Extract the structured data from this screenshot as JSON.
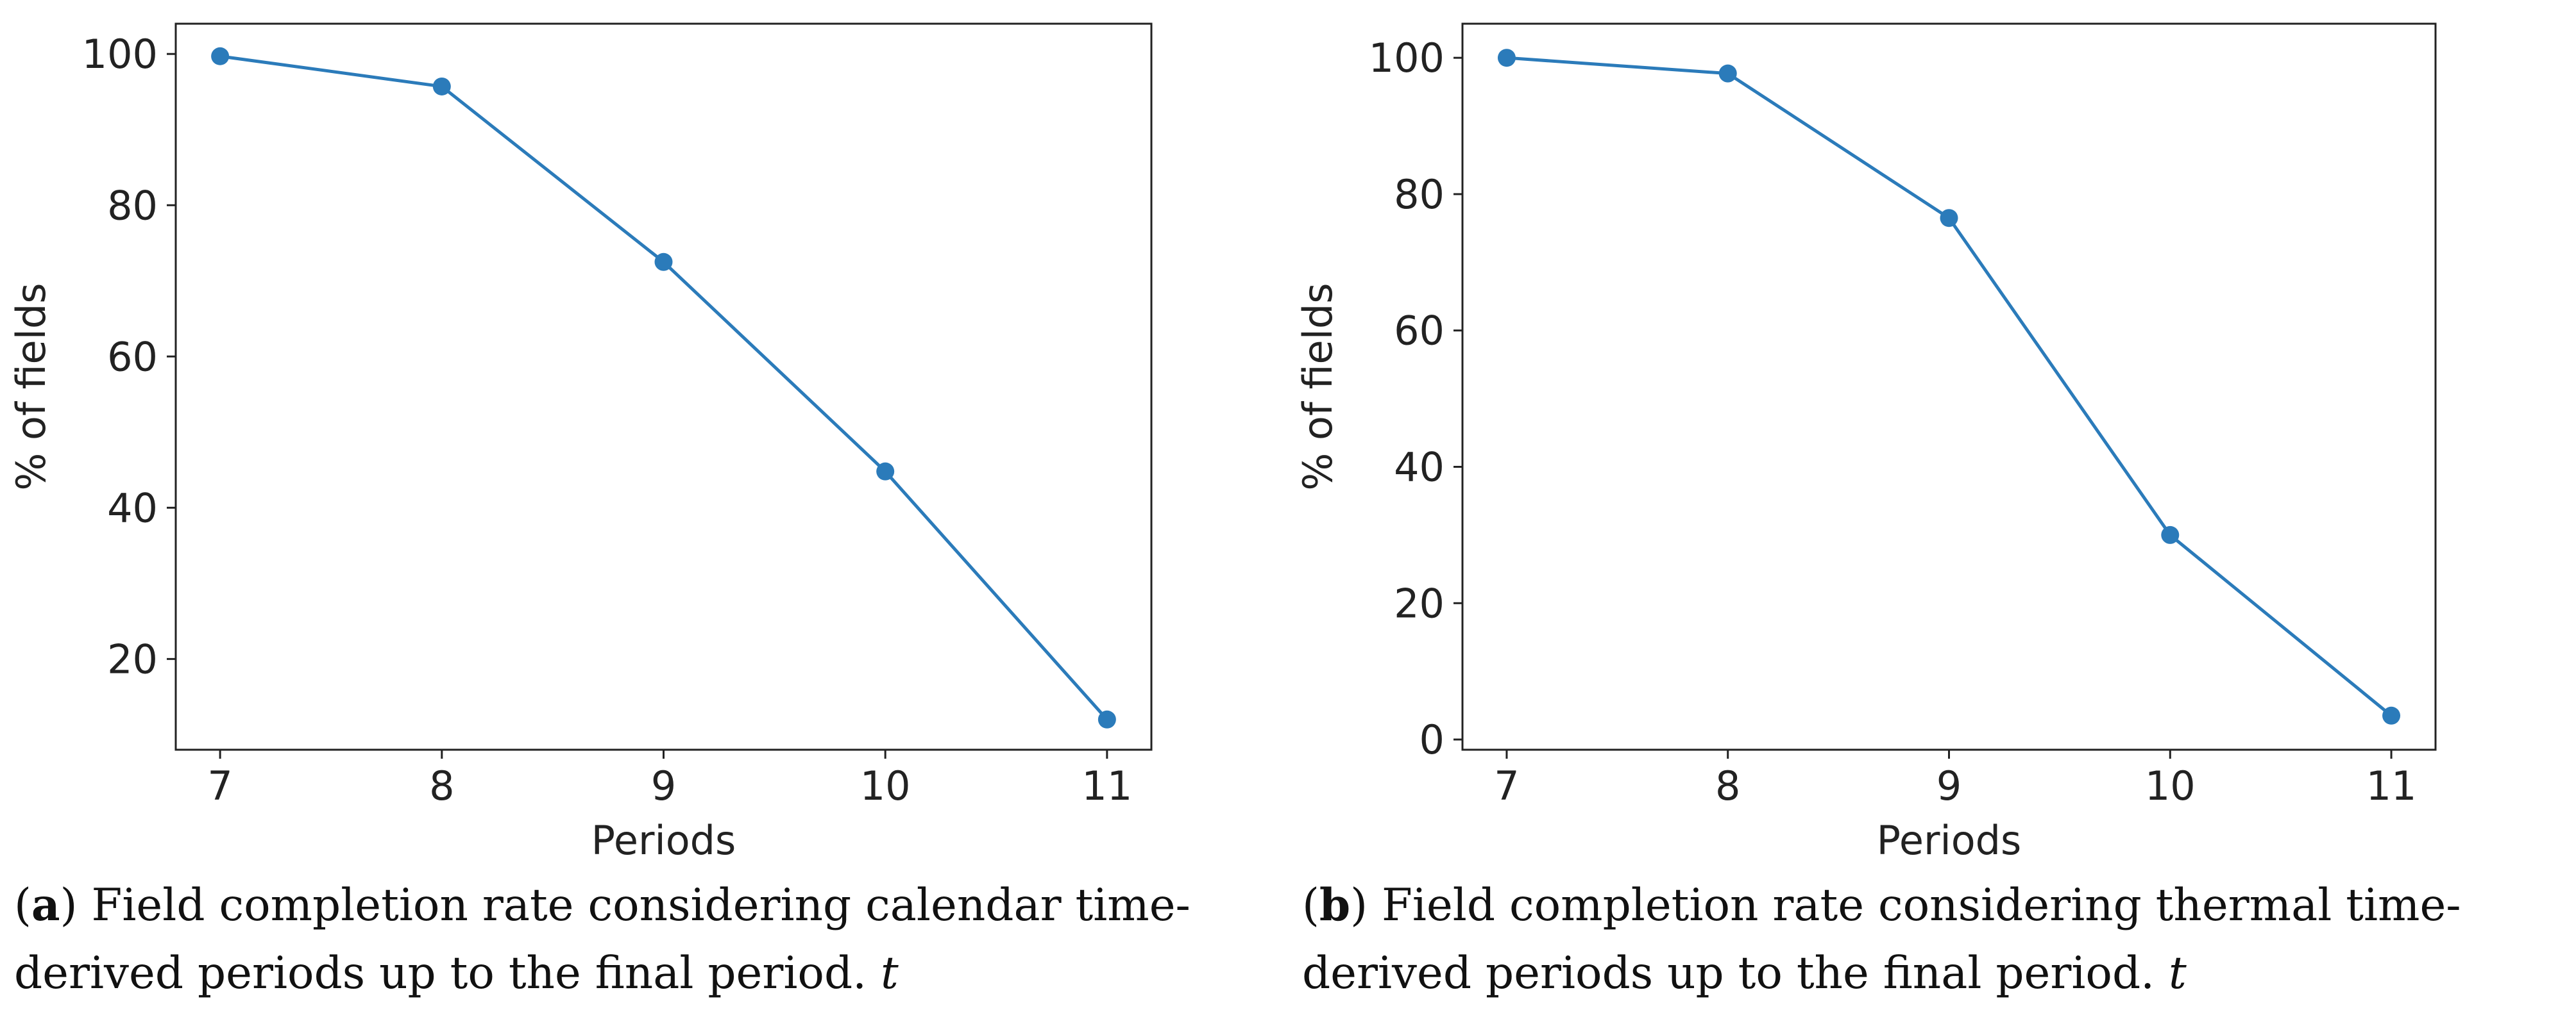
{
  "colors": {
    "series": "#2b7bba",
    "axis": "#222222"
  },
  "chart_data": [
    {
      "id": "a",
      "type": "line",
      "xlabel": "Periods",
      "ylabel": "% of fields",
      "x": [
        7,
        8,
        9,
        10,
        11
      ],
      "series": [
        {
          "name": "completion rate",
          "values": [
            99.7,
            95.7,
            72.5,
            44.8,
            12.0
          ]
        }
      ],
      "xlim": [
        6.8,
        11.2
      ],
      "ylim": [
        8,
        104
      ],
      "xticks": [
        7,
        8,
        9,
        10,
        11
      ],
      "yticks": [
        20,
        40,
        60,
        80,
        100
      ],
      "caption": {
        "letter": "a",
        "text": ") Field completion rate considering calendar time-derived periods up to the final period. ",
        "variable": "t"
      }
    },
    {
      "id": "b",
      "type": "line",
      "xlabel": "Periods",
      "ylabel": "% of fields",
      "x": [
        7,
        8,
        9,
        10,
        11
      ],
      "series": [
        {
          "name": "completion rate",
          "values": [
            100.0,
            97.7,
            76.5,
            30.0,
            3.5
          ]
        }
      ],
      "xlim": [
        6.8,
        11.2
      ],
      "ylim": [
        -1.5,
        105
      ],
      "xticks": [
        7,
        8,
        9,
        10,
        11
      ],
      "yticks": [
        0,
        20,
        40,
        60,
        80,
        100
      ],
      "caption": {
        "letter": "b",
        "text": ") Field completion rate considering thermal time-derived periods up to the final period. ",
        "variable": "t"
      }
    }
  ]
}
